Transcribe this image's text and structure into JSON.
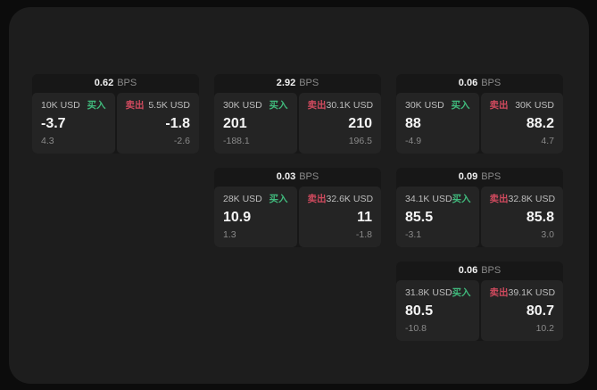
{
  "window": {
    "background": "#1d1d1d",
    "outer_background": "#0c0c0c"
  },
  "labels": {
    "bps_unit": "BPS",
    "buy": "买入",
    "sell": "卖出"
  },
  "colors": {
    "buy": "#40b97c",
    "sell": "#d04a5e"
  },
  "cards": [
    {
      "row": 1,
      "col": 1,
      "bps": "0.62",
      "buy": {
        "amount": "10K USD",
        "price": "-3.7",
        "delta": "4.3"
      },
      "sell": {
        "amount": "5.5K USD",
        "price": "-1.8",
        "delta": "-2.6"
      }
    },
    {
      "row": 1,
      "col": 2,
      "bps": "2.92",
      "buy": {
        "amount": "30K USD",
        "price": "201",
        "delta": "-188.1"
      },
      "sell": {
        "amount": "30.1K USD",
        "price": "210",
        "delta": "196.5"
      }
    },
    {
      "row": 1,
      "col": 3,
      "bps": "0.06",
      "buy": {
        "amount": "30K USD",
        "price": "88",
        "delta": "-4.9"
      },
      "sell": {
        "amount": "30K USD",
        "price": "88.2",
        "delta": "4.7"
      }
    },
    {
      "row": 2,
      "col": 2,
      "bps": "0.03",
      "buy": {
        "amount": "28K USD",
        "price": "10.9",
        "delta": "1.3"
      },
      "sell": {
        "amount": "32.6K USD",
        "price": "11",
        "delta": "-1.8"
      }
    },
    {
      "row": 2,
      "col": 3,
      "bps": "0.09",
      "buy": {
        "amount": "34.1K USD",
        "price": "85.5",
        "delta": "-3.1"
      },
      "sell": {
        "amount": "32.8K USD",
        "price": "85.8",
        "delta": "3.0"
      }
    },
    {
      "row": 3,
      "col": 3,
      "bps": "0.06",
      "buy": {
        "amount": "31.8K USD",
        "price": "80.5",
        "delta": "-10.8"
      },
      "sell": {
        "amount": "39.1K USD",
        "price": "80.7",
        "delta": "10.2"
      }
    }
  ]
}
